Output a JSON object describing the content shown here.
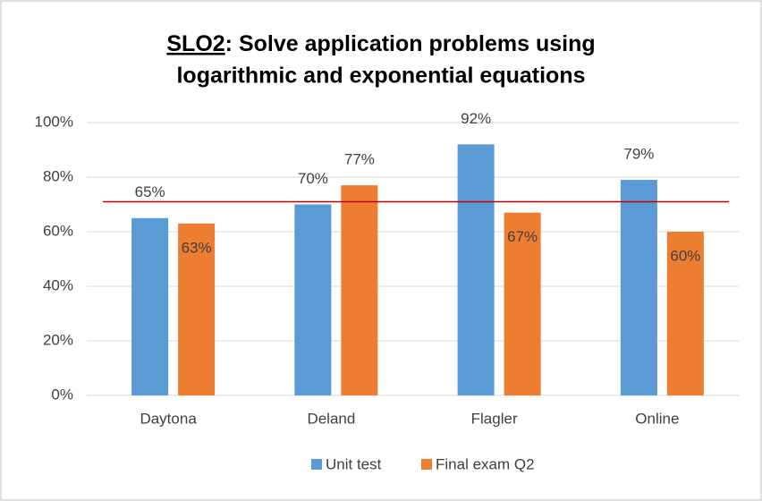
{
  "chart_data": {
    "type": "bar",
    "title_parts": [
      "SLO2",
      ": Solve application problems using",
      "logarithmic and exponential equations"
    ],
    "categories": [
      "Daytona",
      "Deland",
      "Flagler",
      "Online"
    ],
    "series": [
      {
        "name": "Unit test",
        "color": "#5b9bd5",
        "values": [
          65,
          70,
          92,
          79
        ],
        "value_labels": [
          "65%",
          "70%",
          "92%",
          "79%"
        ]
      },
      {
        "name": "Final exam Q2",
        "color": "#ed7d31",
        "values": [
          63,
          77,
          67,
          60
        ],
        "value_labels": [
          "63%",
          "77%",
          "67%",
          "60%"
        ]
      }
    ],
    "ylim": [
      0,
      100
    ],
    "yticks": [
      {
        "value": 0,
        "label": "0%"
      },
      {
        "value": 20,
        "label": "20%"
      },
      {
        "value": 40,
        "label": "40%"
      },
      {
        "value": 60,
        "label": "60%"
      },
      {
        "value": 80,
        "label": "80%"
      },
      {
        "value": 100,
        "label": "100%"
      }
    ],
    "grid": true,
    "legend": "bottom",
    "reference_line": {
      "value": 71,
      "color": "#c00000"
    }
  }
}
